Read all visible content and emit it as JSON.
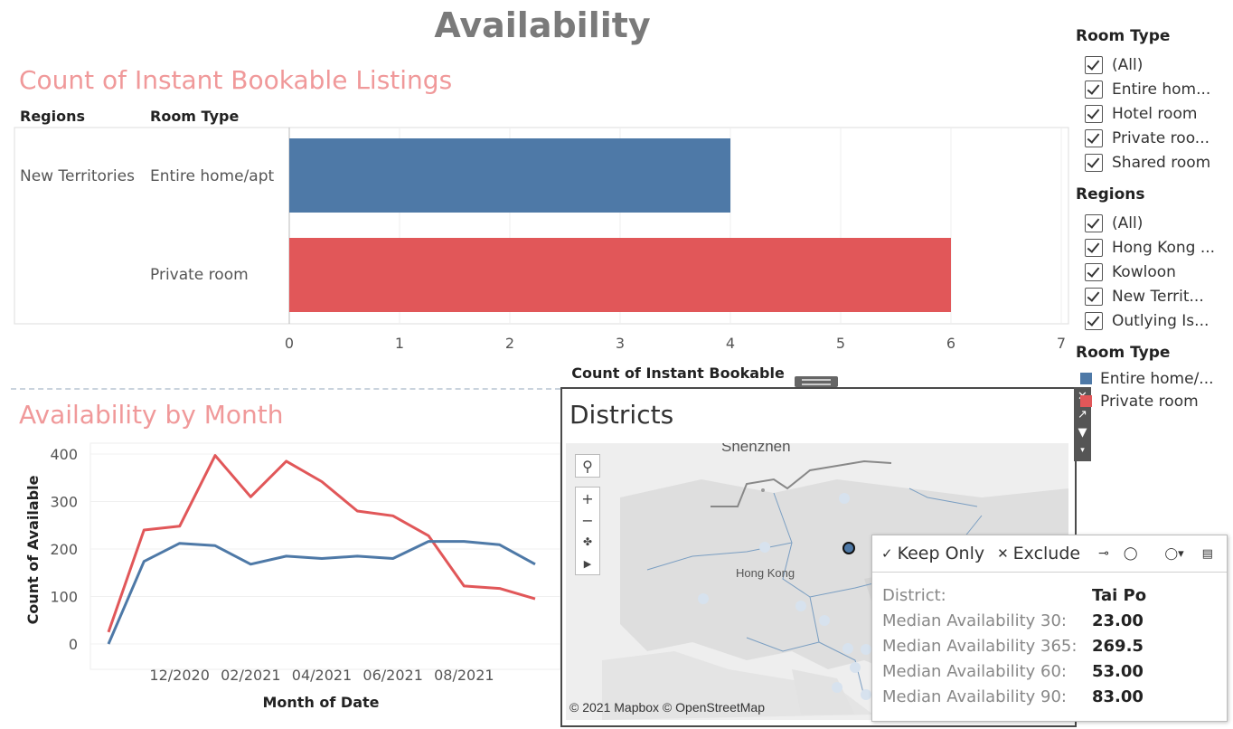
{
  "dashboard": {
    "title": "Availability"
  },
  "bar_section": {
    "title": "Count of Instant Bookable Listings",
    "col_regions": "Regions",
    "col_room_type": "Room Type",
    "region_label": "New Territories",
    "row_labels": [
      "Entire home/apt",
      "Private room"
    ]
  },
  "line_section": {
    "title": "Availability by Month"
  },
  "map_section": {
    "title": "Districts",
    "labels": {
      "shenzhen": "Shenzhen",
      "hong_kong": "Hong Kong"
    },
    "attribution": "© 2021 Mapbox © OpenStreetMap"
  },
  "tooltip": {
    "keep_only": "Keep Only",
    "exclude": "Exclude",
    "rows": [
      {
        "label": "District:",
        "value": "Tai Po"
      },
      {
        "label": "Median Availability 30:",
        "value": "23.00"
      },
      {
        "label": "Median Availability 365:",
        "value": "269.5"
      },
      {
        "label": "Median Availability 60:",
        "value": "53.00"
      },
      {
        "label": "Median Availability 90:",
        "value": "83.00"
      }
    ]
  },
  "filters": {
    "room_type": {
      "title": "Room Type",
      "items": [
        "(All)",
        "Entire hom...",
        "Hotel room",
        "Private roo...",
        "Shared room"
      ]
    },
    "regions": {
      "title": "Regions",
      "items": [
        "(All)",
        "Hong Kong ...",
        "Kowloon",
        "New Territ...",
        "Outlying Is..."
      ]
    }
  },
  "legend": {
    "title": "Room Type",
    "items": [
      {
        "label": "Entire home/...",
        "color": "#4e79a7"
      },
      {
        "label": "Private room",
        "color": "#e15759"
      }
    ]
  },
  "colors": {
    "blue": "#4e79a7",
    "red": "#e15759",
    "title_pink": "#f0999a"
  },
  "chart_data": [
    {
      "type": "bar",
      "orientation": "horizontal",
      "categories": [
        "Entire home/apt",
        "Private room"
      ],
      "values": [
        4,
        6
      ],
      "colors": [
        "#4e79a7",
        "#e15759"
      ],
      "xlabel": "Count of Instant Bookable",
      "xlim": [
        0,
        7
      ],
      "xticks": [
        "0",
        "1",
        "2",
        "3",
        "4",
        "5",
        "6",
        "7"
      ]
    },
    {
      "type": "line",
      "ylabel": "Count of Available",
      "xlabel": "Month of Date",
      "ylim": [
        0,
        400
      ],
      "yticks": [
        "0",
        "100",
        "200",
        "300",
        "400"
      ],
      "xticks": [
        "12/2020",
        "02/2021",
        "04/2021",
        "06/2021",
        "08/2021"
      ],
      "x": [
        "10/2020",
        "11/2020",
        "12/2020",
        "01/2021",
        "02/2021",
        "03/2021",
        "04/2021",
        "05/2021",
        "06/2021",
        "07/2021",
        "08/2021",
        "09/2021",
        "10/2021"
      ],
      "series": [
        {
          "color": "#e15759",
          "values": [
            25,
            240,
            248,
            397,
            310,
            385,
            342,
            280,
            270,
            228,
            122,
            117,
            95
          ]
        },
        {
          "color": "#4e79a7",
          "values": [
            0,
            174,
            212,
            207,
            168,
            185,
            180,
            185,
            180,
            216,
            216,
            209,
            168
          ]
        }
      ]
    }
  ]
}
